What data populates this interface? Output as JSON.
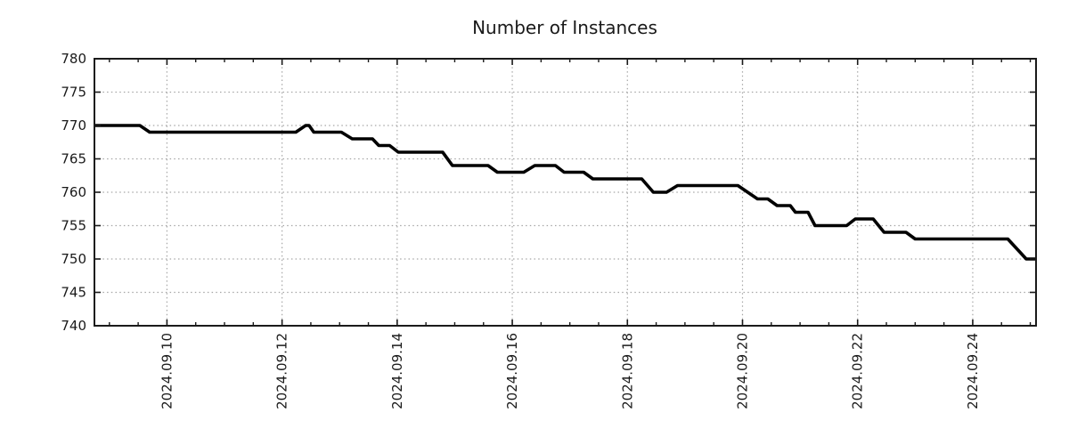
{
  "chart_data": {
    "type": "line",
    "title": "Number of Instances",
    "legend": false,
    "grid": true,
    "x_axis": {
      "unit": "days since first labeled tick (2024.09.10 00:00)",
      "range_days": [
        -1.26,
        15.1
      ],
      "major_tick_days": [
        0,
        2,
        4,
        6,
        8,
        10,
        12,
        14
      ],
      "tick_labels": [
        "2024.09.10",
        "2024.09.12",
        "2024.09.14",
        "2024.09.16",
        "2024.09.18",
        "2024.09.20",
        "2024.09.22",
        "2024.09.24"
      ],
      "minor_tick_interval_days": 0.5
    },
    "y_axis": {
      "range": [
        740,
        780
      ],
      "ticks": [
        740,
        745,
        750,
        755,
        760,
        765,
        770,
        775,
        780
      ],
      "tick_labels": [
        "740",
        "745",
        "750",
        "755",
        "760",
        "765",
        "770",
        "775",
        "780"
      ]
    },
    "series": [
      {
        "name": "instances",
        "color": "#000000",
        "points_day_value": [
          [
            -1.26,
            770
          ],
          [
            -0.47,
            770
          ],
          [
            -0.3,
            769
          ],
          [
            2.24,
            769
          ],
          [
            2.41,
            770
          ],
          [
            2.47,
            770
          ],
          [
            2.55,
            769
          ],
          [
            3.03,
            769
          ],
          [
            3.22,
            768
          ],
          [
            3.57,
            768
          ],
          [
            3.68,
            767
          ],
          [
            3.87,
            767
          ],
          [
            4.02,
            766
          ],
          [
            4.79,
            766
          ],
          [
            4.96,
            764
          ],
          [
            5.58,
            764
          ],
          [
            5.74,
            763
          ],
          [
            6.2,
            763
          ],
          [
            6.39,
            764
          ],
          [
            6.75,
            764
          ],
          [
            6.9,
            763
          ],
          [
            7.24,
            763
          ],
          [
            7.4,
            762
          ],
          [
            8.25,
            762
          ],
          [
            8.45,
            760
          ],
          [
            8.68,
            760
          ],
          [
            8.87,
            761
          ],
          [
            9.92,
            761
          ],
          [
            10.26,
            759
          ],
          [
            10.44,
            759
          ],
          [
            10.6,
            758
          ],
          [
            10.83,
            758
          ],
          [
            10.92,
            757
          ],
          [
            11.14,
            757
          ],
          [
            11.26,
            755
          ],
          [
            11.81,
            755
          ],
          [
            11.96,
            756
          ],
          [
            12.27,
            756
          ],
          [
            12.46,
            754
          ],
          [
            12.84,
            754
          ],
          [
            13.0,
            753
          ],
          [
            14.61,
            753
          ],
          [
            14.93,
            750
          ],
          [
            15.1,
            750
          ]
        ]
      }
    ]
  },
  "style": {
    "line_color": "#000000",
    "grid_color": "#a6a6a6",
    "axis_color": "#1a1a1a",
    "text_color": "#1a1a1a",
    "background": "#ffffff"
  }
}
